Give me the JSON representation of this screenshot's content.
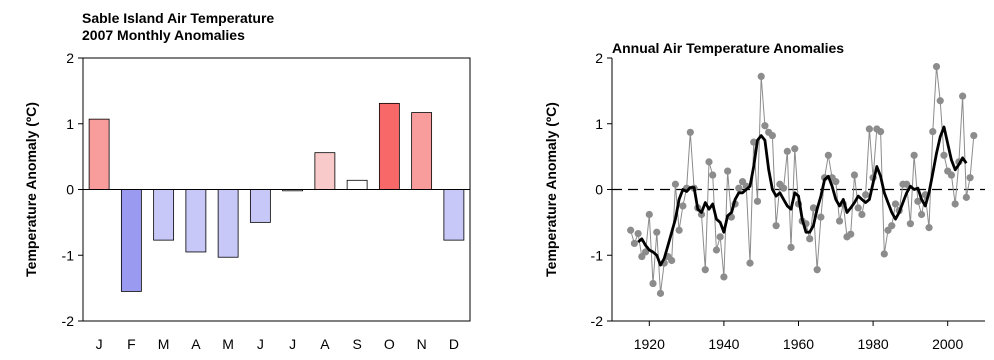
{
  "chart_data": [
    {
      "type": "bar",
      "title": "Sable Island Air Temperature",
      "subtitle": "2007 Monthly Anomalies",
      "ylabel": "Temperature Anomaly (ºC)",
      "xlabel": "",
      "ylim": [
        -2,
        2
      ],
      "yticks": [
        2,
        1,
        0,
        -1,
        -2
      ],
      "categories": [
        "J",
        "F",
        "M",
        "A",
        "M",
        "J",
        "J",
        "A",
        "S",
        "O",
        "N",
        "D"
      ],
      "values": [
        1.07,
        -1.55,
        -0.77,
        -0.95,
        -1.03,
        -0.5,
        -0.02,
        0.56,
        0.14,
        1.31,
        1.17,
        -0.77
      ],
      "colors": {
        "warm_strong": "#f86868",
        "warm_medium": "#f89c9c",
        "warm_light": "#f8caca",
        "neutral": "#ffffff",
        "cool_light": "#c8c8f8",
        "cool_strong": "#9a9af0",
        "edge": "#000000"
      }
    },
    {
      "type": "line",
      "title": "Annual Air Temperature Anomalies",
      "ylabel": "Temperature Anomaly (ºC)",
      "xlabel": "",
      "ylim": [
        -2,
        2
      ],
      "yticks": [
        2,
        1,
        0,
        -1,
        -2
      ],
      "xlim": [
        1910,
        2010
      ],
      "xticks": [
        1920,
        1940,
        1960,
        1980,
        2000
      ],
      "series": [
        {
          "type": "line-markers",
          "color": "#8c8c8c",
          "x": [
            1915,
            1916,
            1917,
            1918,
            1919,
            1920,
            1921,
            1922,
            1923,
            1924,
            1925,
            1926,
            1927,
            1928,
            1929,
            1930,
            1931,
            1932,
            1933,
            1934,
            1935,
            1936,
            1937,
            1938,
            1939,
            1940,
            1941,
            1942,
            1943,
            1944,
            1945,
            1946,
            1947,
            1948,
            1949,
            1950,
            1951,
            1952,
            1953,
            1954,
            1955,
            1956,
            1957,
            1958,
            1959,
            1960,
            1961,
            1962,
            1963,
            1964,
            1965,
            1966,
            1967,
            1968,
            1969,
            1970,
            1971,
            1972,
            1973,
            1974,
            1975,
            1976,
            1977,
            1978,
            1979,
            1980,
            1981,
            1982,
            1983,
            1984,
            1985,
            1986,
            1987,
            1988,
            1989,
            1990,
            1991,
            1992,
            1993,
            1994,
            1995,
            1996,
            1997,
            1998,
            1999,
            2000,
            2001,
            2002,
            2003,
            2004,
            2005,
            2006,
            2007
          ],
          "y": [
            -0.62,
            -0.82,
            -0.67,
            -1.02,
            -0.95,
            -0.38,
            -1.43,
            -0.65,
            -1.58,
            -1.12,
            -1.02,
            -1.08,
            0.08,
            -0.62,
            -0.25,
            0.02,
            0.87,
            0.02,
            -0.28,
            -0.38,
            -1.22,
            0.42,
            0.22,
            -0.92,
            -0.72,
            -1.33,
            0.28,
            -0.42,
            -0.22,
            0.02,
            0.12,
            0.05,
            -1.12,
            0.72,
            -0.18,
            1.72,
            0.97,
            0.87,
            0.82,
            -0.55,
            0.08,
            0.02,
            0.58,
            -0.88,
            0.62,
            -0.22,
            -0.48,
            -0.52,
            -0.75,
            -0.28,
            -1.22,
            -0.42,
            0.18,
            0.52,
            0.18,
            0.12,
            -0.48,
            -0.22,
            -0.72,
            -0.68,
            0.22,
            -0.28,
            -0.38,
            -0.08,
            0.92,
            0.18,
            0.92,
            0.88,
            -0.98,
            -0.62,
            -0.55,
            -0.22,
            -0.32,
            0.08,
            0.08,
            -0.52,
            0.52,
            -0.18,
            -0.38,
            -0.08,
            -0.58,
            0.88,
            1.87,
            1.35,
            0.52,
            0.28,
            0.22,
            -0.22,
            0.42,
            1.42,
            -0.12,
            0.18,
            0.82
          ]
        },
        {
          "type": "line",
          "color": "#000000",
          "x": [
            1917,
            1918,
            1919,
            1920,
            1921,
            1922,
            1923,
            1924,
            1925,
            1926,
            1927,
            1928,
            1929,
            1930,
            1931,
            1932,
            1933,
            1934,
            1935,
            1936,
            1937,
            1938,
            1939,
            1940,
            1941,
            1942,
            1943,
            1944,
            1945,
            1946,
            1947,
            1948,
            1949,
            1950,
            1951,
            1952,
            1953,
            1954,
            1955,
            1956,
            1957,
            1958,
            1959,
            1960,
            1961,
            1962,
            1963,
            1964,
            1965,
            1966,
            1967,
            1968,
            1969,
            1970,
            1971,
            1972,
            1973,
            1974,
            1975,
            1976,
            1977,
            1978,
            1979,
            1980,
            1981,
            1982,
            1983,
            1984,
            1985,
            1986,
            1987,
            1988,
            1989,
            1990,
            1991,
            1992,
            1993,
            1994,
            1995,
            1996,
            1997,
            1998,
            1999,
            2000,
            2001,
            2002,
            2003,
            2004,
            2005
          ],
          "y": [
            -0.8,
            -0.75,
            -0.85,
            -0.92,
            -0.95,
            -1.0,
            -1.15,
            -1.05,
            -0.85,
            -0.65,
            -0.45,
            -0.15,
            0.0,
            -0.03,
            0.03,
            0.03,
            -0.3,
            -0.35,
            -0.2,
            -0.3,
            -0.22,
            -0.45,
            -0.5,
            -0.65,
            -0.4,
            -0.35,
            -0.15,
            -0.05,
            -0.05,
            0.0,
            0.05,
            0.35,
            0.75,
            0.82,
            0.75,
            0.3,
            0.0,
            -0.1,
            -0.05,
            -0.15,
            -0.25,
            -0.3,
            -0.05,
            -0.1,
            -0.45,
            -0.65,
            -0.65,
            -0.55,
            -0.3,
            -0.1,
            0.15,
            0.2,
            0.05,
            -0.15,
            -0.25,
            -0.15,
            -0.35,
            -0.28,
            -0.2,
            -0.1,
            -0.15,
            -0.2,
            -0.15,
            0.1,
            0.35,
            0.2,
            -0.05,
            -0.2,
            -0.35,
            -0.45,
            -0.35,
            -0.2,
            -0.05,
            0.05,
            0.0,
            0.02,
            -0.15,
            -0.25,
            -0.05,
            0.25,
            0.55,
            0.8,
            0.95,
            0.7,
            0.45,
            0.3,
            0.38,
            0.48,
            0.4
          ]
        }
      ]
    }
  ]
}
